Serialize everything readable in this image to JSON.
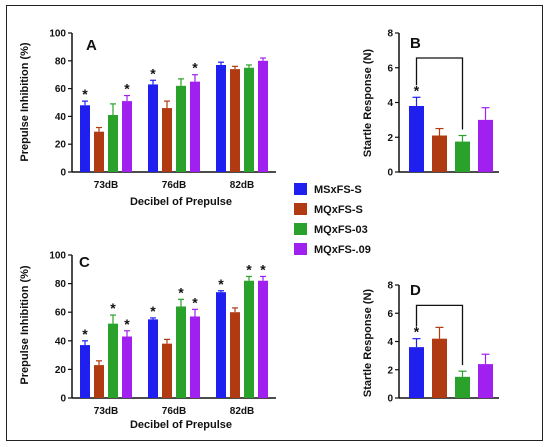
{
  "legend": [
    {
      "label": "MSxFS-S",
      "color": "#1f1ff0"
    },
    {
      "label": "MQxFS-S",
      "color": "#b03a12"
    },
    {
      "label": "MQxFS-03",
      "color": "#2aa12a"
    },
    {
      "label": "MQxFS-.09",
      "color": "#a020f0"
    }
  ],
  "chart_data": [
    {
      "id": "A",
      "panel_label": "A",
      "type": "bar",
      "ylabel": "Prepulse Inhibition (%)",
      "xlabel": "Decibel of Prepulse",
      "ylim": [
        0,
        100
      ],
      "yticks": [
        0,
        20,
        40,
        60,
        80,
        100
      ],
      "categories": [
        "73dB",
        "76dB",
        "82dB"
      ],
      "series": [
        {
          "name": "MSxFS-S",
          "values": [
            48,
            63,
            77
          ],
          "errors": [
            3,
            3,
            2
          ],
          "sig": [
            true,
            true,
            false
          ]
        },
        {
          "name": "MQxFS-S",
          "values": [
            29,
            46,
            74
          ],
          "errors": [
            3,
            5,
            2
          ],
          "sig": [
            false,
            false,
            false
          ]
        },
        {
          "name": "MQxFS-03",
          "values": [
            41,
            62,
            75
          ],
          "errors": [
            8,
            5,
            2
          ],
          "sig": [
            false,
            false,
            false
          ]
        },
        {
          "name": "MQxFS-.09",
          "values": [
            51,
            65,
            80
          ],
          "errors": [
            4,
            5,
            2
          ],
          "sig": [
            true,
            true,
            false
          ]
        }
      ],
      "grid": false
    },
    {
      "id": "B",
      "panel_label": "B",
      "type": "bar",
      "ylabel": "Startle Response (N)",
      "xlabel": "",
      "ylim": [
        0,
        8
      ],
      "yticks": [
        0,
        2,
        4,
        6,
        8
      ],
      "categories": [
        "MSxFS-S",
        "MQxFS-S",
        "MQxFS-03",
        "MQxFS-.09"
      ],
      "values": [
        3.8,
        2.1,
        1.75,
        3.0
      ],
      "errors": [
        0.5,
        0.4,
        0.35,
        0.7
      ],
      "sig": [
        true,
        false,
        false,
        false
      ],
      "bracket": {
        "from": 0,
        "to": 2
      },
      "grid": false
    },
    {
      "id": "C",
      "panel_label": "C",
      "type": "bar",
      "ylabel": "Prepulse Inhibition (%)",
      "xlabel": "Decibel of Prepulse",
      "ylim": [
        0,
        100
      ],
      "yticks": [
        0,
        20,
        40,
        60,
        80,
        100
      ],
      "categories": [
        "73dB",
        "76dB",
        "82dB"
      ],
      "series": [
        {
          "name": "MSxFS-S",
          "values": [
            37,
            55,
            74
          ],
          "errors": [
            3,
            1,
            1
          ],
          "sig": [
            true,
            true,
            true
          ]
        },
        {
          "name": "MQxFS-S",
          "values": [
            23,
            38,
            60
          ],
          "errors": [
            3,
            3,
            3
          ],
          "sig": [
            false,
            false,
            false
          ]
        },
        {
          "name": "MQxFS-03",
          "values": [
            52,
            64,
            82
          ],
          "errors": [
            6,
            5,
            3
          ],
          "sig": [
            true,
            true,
            true
          ]
        },
        {
          "name": "MQxFS-.09",
          "values": [
            43,
            57,
            82
          ],
          "errors": [
            4,
            5,
            3
          ],
          "sig": [
            true,
            true,
            true
          ]
        }
      ],
      "grid": false
    },
    {
      "id": "D",
      "panel_label": "D",
      "type": "bar",
      "ylabel": "Startle Response (N)",
      "xlabel": "",
      "ylim": [
        0,
        8
      ],
      "yticks": [
        0,
        2,
        4,
        6,
        8
      ],
      "categories": [
        "MSxFS-S",
        "MQxFS-S",
        "MQxFS-03",
        "MQxFS-.09"
      ],
      "values": [
        3.6,
        4.2,
        1.5,
        2.4
      ],
      "errors": [
        0.6,
        0.8,
        0.4,
        0.7
      ],
      "sig": [
        true,
        false,
        false,
        false
      ],
      "bracket": {
        "from": 0,
        "to": 2
      },
      "grid": false
    }
  ]
}
